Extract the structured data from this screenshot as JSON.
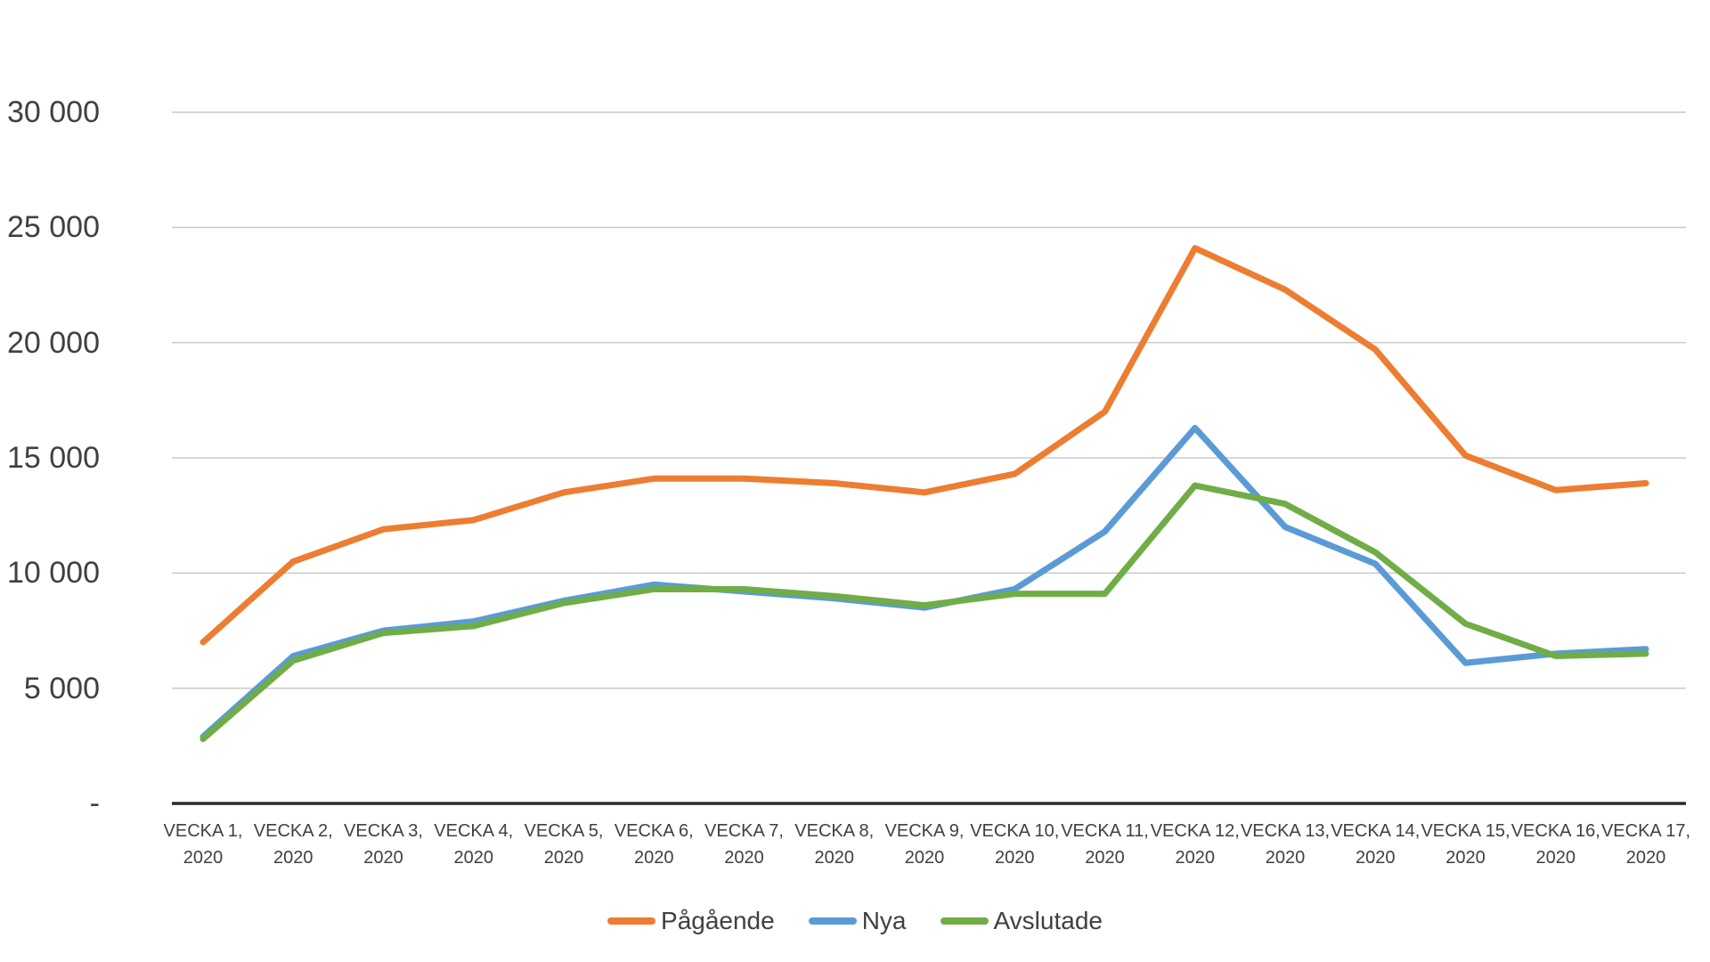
{
  "chart_data": {
    "type": "line",
    "title": "",
    "xlabel": "",
    "ylabel": "",
    "ylim": [
      0,
      30000
    ],
    "grid": "horizontal",
    "gridline_color": "#c9c9c9",
    "axis_line_color": "#2b2b2b",
    "text_color": "#404040",
    "legend_position": "bottom",
    "categories": [
      "VECKA 1, 2020",
      "VECKA 2, 2020",
      "VECKA 3, 2020",
      "VECKA 4, 2020",
      "VECKA 5, 2020",
      "VECKA 6, 2020",
      "VECKA 7, 2020",
      "VECKA 8, 2020",
      "VECKA 9, 2020",
      "VECKA 10, 2020",
      "VECKA 11, 2020",
      "VECKA 12, 2020",
      "VECKA 13, 2020",
      "VECKA 14, 2020",
      "VECKA 15, 2020",
      "VECKA 16, 2020",
      "VECKA 17, 2020"
    ],
    "y_axis": {
      "min": 0,
      "max": 30000,
      "step": 5000,
      "ticks": [
        {
          "label": "30 000",
          "value": 30000
        },
        {
          "label": "25 000",
          "value": 25000
        },
        {
          "label": "20 000",
          "value": 20000
        },
        {
          "label": "15 000",
          "value": 15000
        },
        {
          "label": "10 000",
          "value": 10000
        },
        {
          "label": "5 000",
          "value": 5000
        },
        {
          "label": "-",
          "value": 0
        }
      ]
    },
    "series": [
      {
        "name": "Pågående",
        "color": "#ED7D31",
        "values": [
          7000,
          10500,
          11900,
          12300,
          13500,
          14100,
          14100,
          13900,
          13500,
          14300,
          17000,
          24100,
          22300,
          19700,
          15100,
          13600,
          13900
        ]
      },
      {
        "name": "Nya",
        "color": "#5B9BD5",
        "values": [
          2900,
          6400,
          7500,
          7900,
          8800,
          9500,
          9200,
          8900,
          8500,
          9300,
          11800,
          16300,
          12000,
          10400,
          6100,
          6500,
          6700
        ]
      },
      {
        "name": "Avslutade",
        "color": "#70AD47",
        "values": [
          2800,
          6200,
          7400,
          7700,
          8700,
          9300,
          9300,
          9000,
          8600,
          9100,
          9100,
          13800,
          13000,
          10900,
          7800,
          6400,
          6500
        ]
      }
    ]
  }
}
